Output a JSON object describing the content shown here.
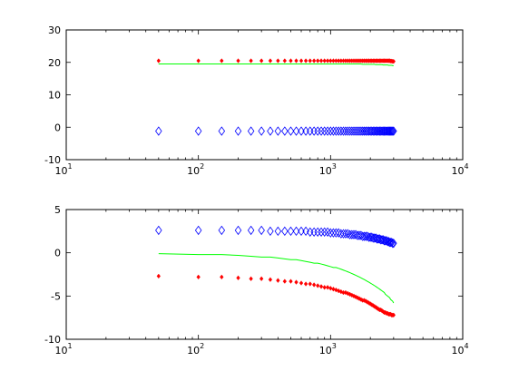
{
  "chart_data": [
    {
      "type": "scatter",
      "xscale": "log",
      "xlim": [
        10,
        10000
      ],
      "ylim": [
        -10,
        30
      ],
      "xticks": [
        10,
        100,
        1000,
        10000
      ],
      "xtick_labels": [
        {
          "base": "10",
          "exp": "1"
        },
        {
          "base": "10",
          "exp": "2"
        },
        {
          "base": "10",
          "exp": "3"
        },
        {
          "base": "10",
          "exp": "4"
        }
      ],
      "yticks": [
        -10,
        0,
        10,
        20,
        30
      ],
      "ytick_labels": [
        "-10",
        "0",
        "10",
        "20",
        "30"
      ],
      "grid": false,
      "x": [
        50,
        100,
        150,
        200,
        250,
        300,
        350,
        400,
        450,
        500,
        550,
        600,
        650,
        700,
        750,
        800,
        850,
        900,
        950,
        1000,
        1050,
        1100,
        1150,
        1200,
        1250,
        1300,
        1350,
        1400,
        1450,
        1500,
        1550,
        1600,
        1650,
        1700,
        1750,
        1800,
        1850,
        1900,
        1950,
        2000,
        2050,
        2100,
        2150,
        2200,
        2250,
        2300,
        2350,
        2400,
        2450,
        2500,
        2550,
        2600,
        2650,
        2700,
        2750,
        2800,
        2850,
        2900,
        2950,
        3000
      ],
      "series": [
        {
          "marker": "point",
          "color": "#ff0000",
          "values": [
            20.5,
            20.5,
            20.5,
            20.5,
            20.5,
            20.5,
            20.5,
            20.5,
            20.5,
            20.5,
            20.5,
            20.5,
            20.5,
            20.5,
            20.5,
            20.5,
            20.5,
            20.5,
            20.5,
            20.5,
            20.5,
            20.5,
            20.5,
            20.5,
            20.5,
            20.5,
            20.5,
            20.5,
            20.5,
            20.5,
            20.5,
            20.5,
            20.5,
            20.5,
            20.5,
            20.5,
            20.5,
            20.5,
            20.5,
            20.5,
            20.5,
            20.5,
            20.5,
            20.5,
            20.5,
            20.5,
            20.5,
            20.5,
            20.5,
            20.5,
            20.5,
            20.5,
            20.5,
            20.5,
            20.5,
            20.5,
            20.4,
            20.4,
            20.3,
            20.3
          ]
        },
        {
          "marker": "line",
          "color": "#00ff00",
          "values": [
            19.5,
            19.5,
            19.5,
            19.5,
            19.5,
            19.5,
            19.5,
            19.5,
            19.5,
            19.5,
            19.5,
            19.5,
            19.5,
            19.5,
            19.5,
            19.5,
            19.5,
            19.5,
            19.5,
            19.5,
            19.5,
            19.5,
            19.5,
            19.5,
            19.5,
            19.5,
            19.5,
            19.5,
            19.5,
            19.5,
            19.5,
            19.5,
            19.5,
            19.5,
            19.4,
            19.4,
            19.4,
            19.4,
            19.4,
            19.4,
            19.4,
            19.4,
            19.4,
            19.3,
            19.3,
            19.3,
            19.3,
            19.3,
            19.3,
            19.2,
            19.2,
            19.2,
            19.2,
            19.2,
            19.1,
            19.1,
            19.1,
            19.1,
            19.0,
            19.0
          ]
        },
        {
          "marker": "diamond",
          "color": "#0000ff",
          "values": [
            -1.2,
            -1.2,
            -1.2,
            -1.2,
            -1.2,
            -1.2,
            -1.2,
            -1.2,
            -1.2,
            -1.2,
            -1.2,
            -1.2,
            -1.2,
            -1.2,
            -1.2,
            -1.2,
            -1.2,
            -1.2,
            -1.2,
            -1.2,
            -1.2,
            -1.2,
            -1.2,
            -1.2,
            -1.2,
            -1.2,
            -1.2,
            -1.2,
            -1.2,
            -1.2,
            -1.2,
            -1.2,
            -1.2,
            -1.2,
            -1.2,
            -1.2,
            -1.2,
            -1.2,
            -1.2,
            -1.2,
            -1.2,
            -1.2,
            -1.2,
            -1.2,
            -1.2,
            -1.2,
            -1.2,
            -1.2,
            -1.2,
            -1.2,
            -1.2,
            -1.2,
            -1.2,
            -1.2,
            -1.2,
            -1.2,
            -1.2,
            -1.2,
            -1.2,
            -1.2
          ]
        }
      ]
    },
    {
      "type": "scatter",
      "xscale": "log",
      "xlim": [
        10,
        10000
      ],
      "ylim": [
        -10,
        5
      ],
      "xticks": [
        10,
        100,
        1000,
        10000
      ],
      "xtick_labels": [
        {
          "base": "10",
          "exp": "1"
        },
        {
          "base": "10",
          "exp": "2"
        },
        {
          "base": "10",
          "exp": "3"
        },
        {
          "base": "10",
          "exp": "4"
        }
      ],
      "yticks": [
        -10,
        -5,
        0,
        5
      ],
      "ytick_labels": [
        "-10",
        "-5",
        "0",
        "5"
      ],
      "grid": false,
      "x": [
        50,
        100,
        150,
        200,
        250,
        300,
        350,
        400,
        450,
        500,
        550,
        600,
        650,
        700,
        750,
        800,
        850,
        900,
        950,
        1000,
        1050,
        1100,
        1150,
        1200,
        1250,
        1300,
        1350,
        1400,
        1450,
        1500,
        1550,
        1600,
        1650,
        1700,
        1750,
        1800,
        1850,
        1900,
        1950,
        2000,
        2050,
        2100,
        2150,
        2200,
        2250,
        2300,
        2350,
        2400,
        2450,
        2500,
        2550,
        2600,
        2650,
        2700,
        2750,
        2800,
        2850,
        2900,
        2950,
        3000
      ],
      "series": [
        {
          "marker": "diamond",
          "color": "#0000ff",
          "values": [
            2.6,
            2.6,
            2.6,
            2.6,
            2.6,
            2.6,
            2.5,
            2.5,
            2.5,
            2.5,
            2.5,
            2.5,
            2.5,
            2.4,
            2.4,
            2.4,
            2.4,
            2.4,
            2.4,
            2.3,
            2.3,
            2.3,
            2.3,
            2.2,
            2.2,
            2.2,
            2.2,
            2.1,
            2.1,
            2.1,
            2.1,
            2.0,
            2.0,
            2.0,
            1.9,
            1.9,
            1.9,
            1.9,
            1.8,
            1.8,
            1.8,
            1.7,
            1.7,
            1.7,
            1.6,
            1.6,
            1.6,
            1.5,
            1.5,
            1.5,
            1.4,
            1.4,
            1.4,
            1.3,
            1.3,
            1.2,
            1.2,
            1.2,
            1.1,
            1.1
          ]
        },
        {
          "marker": "line",
          "color": "#00ff00",
          "values": [
            -0.1,
            -0.2,
            -0.2,
            -0.3,
            -0.4,
            -0.5,
            -0.5,
            -0.6,
            -0.7,
            -0.8,
            -0.8,
            -0.9,
            -1.0,
            -1.1,
            -1.2,
            -1.2,
            -1.3,
            -1.4,
            -1.5,
            -1.6,
            -1.7,
            -1.7,
            -1.8,
            -1.9,
            -2.0,
            -2.1,
            -2.2,
            -2.3,
            -2.4,
            -2.5,
            -2.6,
            -2.7,
            -2.8,
            -2.9,
            -3.0,
            -3.1,
            -3.2,
            -3.3,
            -3.4,
            -3.5,
            -3.6,
            -3.7,
            -3.8,
            -3.9,
            -4.0,
            -4.1,
            -4.2,
            -4.3,
            -4.4,
            -4.5,
            -4.6,
            -4.8,
            -4.9,
            -5.0,
            -5.1,
            -5.2,
            -5.4,
            -5.5,
            -5.6,
            -5.8
          ]
        },
        {
          "marker": "point",
          "color": "#ff0000",
          "values": [
            -2.7,
            -2.8,
            -2.8,
            -2.9,
            -3.0,
            -3.0,
            -3.1,
            -3.2,
            -3.3,
            -3.3,
            -3.4,
            -3.5,
            -3.6,
            -3.6,
            -3.7,
            -3.8,
            -3.9,
            -4.0,
            -4.0,
            -4.1,
            -4.2,
            -4.3,
            -4.4,
            -4.5,
            -4.6,
            -4.6,
            -4.7,
            -4.8,
            -4.9,
            -5.0,
            -5.1,
            -5.2,
            -5.3,
            -5.4,
            -5.5,
            -5.5,
            -5.6,
            -5.7,
            -5.8,
            -5.9,
            -6.0,
            -6.1,
            -6.2,
            -6.3,
            -6.4,
            -6.5,
            -6.6,
            -6.6,
            -6.7,
            -6.8,
            -6.9,
            -6.9,
            -7.0,
            -7.0,
            -7.1,
            -7.1,
            -7.1,
            -7.2,
            -7.2,
            -7.2
          ]
        }
      ]
    }
  ]
}
